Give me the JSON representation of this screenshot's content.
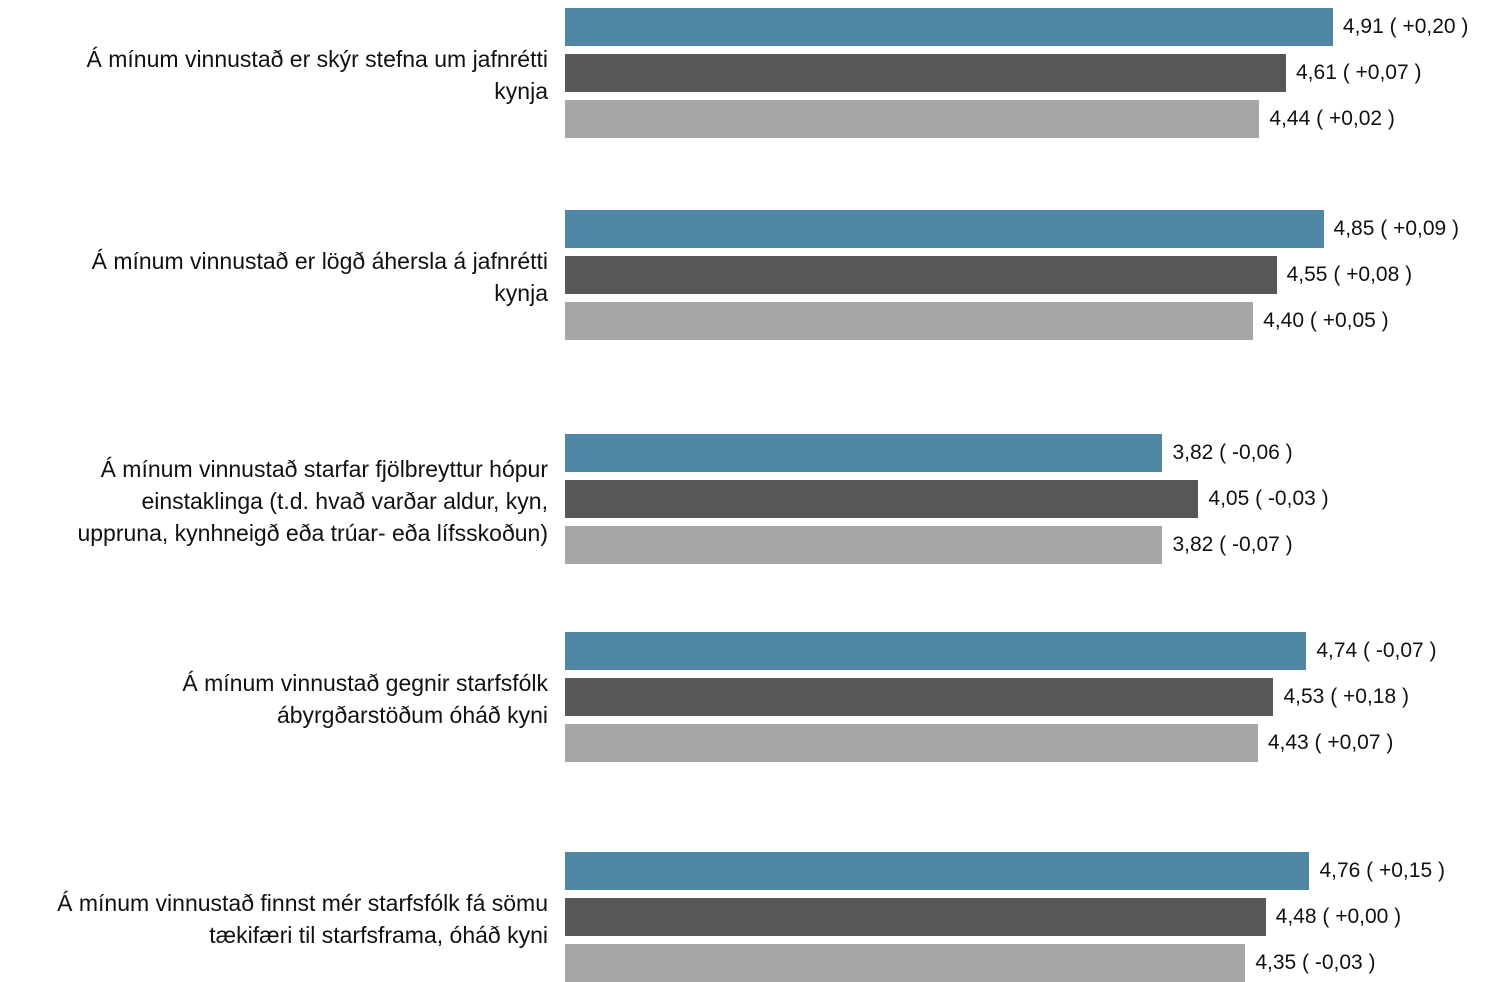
{
  "chart_data": {
    "type": "bar",
    "orientation": "horizontal",
    "categories": [
      [
        "Á mínum vinnustað er skýr stefna um jafnrétti",
        "kynja"
      ],
      [
        "Á mínum vinnustað er lögð áhersla á jafnrétti",
        "kynja"
      ],
      [
        "Á mínum vinnustað starfar fjölbreyttur hópur",
        "einstaklinga (t.d. hvað varðar aldur, kyn,",
        "uppruna, kynhneigð eða trúar- eða lífsskoðun)"
      ],
      [
        "Á mínum vinnustað gegnir starfsfólk",
        "ábyrgðarstöðum óháð kyni"
      ],
      [
        "Á mínum vinnustað finnst mér starfsfólk fá sömu",
        "tækifæri til starfsframa, óháð kyni"
      ]
    ],
    "series": [
      {
        "color": "#4e86a3",
        "values": [
          4.91,
          4.85,
          3.82,
          4.74,
          4.76
        ],
        "labels": [
          "4,91 ( +0,20 )",
          "4,85 ( +0,09 )",
          "3,82 ( -0,06 )",
          "4,74 ( -0,07 )",
          "4,76 ( +0,15 )"
        ]
      },
      {
        "color": "#575757",
        "values": [
          4.61,
          4.55,
          4.05,
          4.53,
          4.48
        ],
        "labels": [
          "4,61 ( +0,07 )",
          "4,55 ( +0,08 )",
          "4,05 ( -0,03 )",
          "4,53 ( +0,18 )",
          "4,48 ( +0,00 )"
        ]
      },
      {
        "color": "#a6a6a6",
        "values": [
          4.44,
          4.4,
          3.82,
          4.43,
          4.35
        ],
        "labels": [
          "4,44 ( +0,02 )",
          "4,40 ( +0,05 )",
          "3,82 ( -0,07 )",
          "4,43 ( +0,07 )",
          "4,35 ( -0,03 )"
        ]
      }
    ],
    "xlim": [
      0,
      5
    ],
    "grid": false,
    "legend": "none"
  }
}
